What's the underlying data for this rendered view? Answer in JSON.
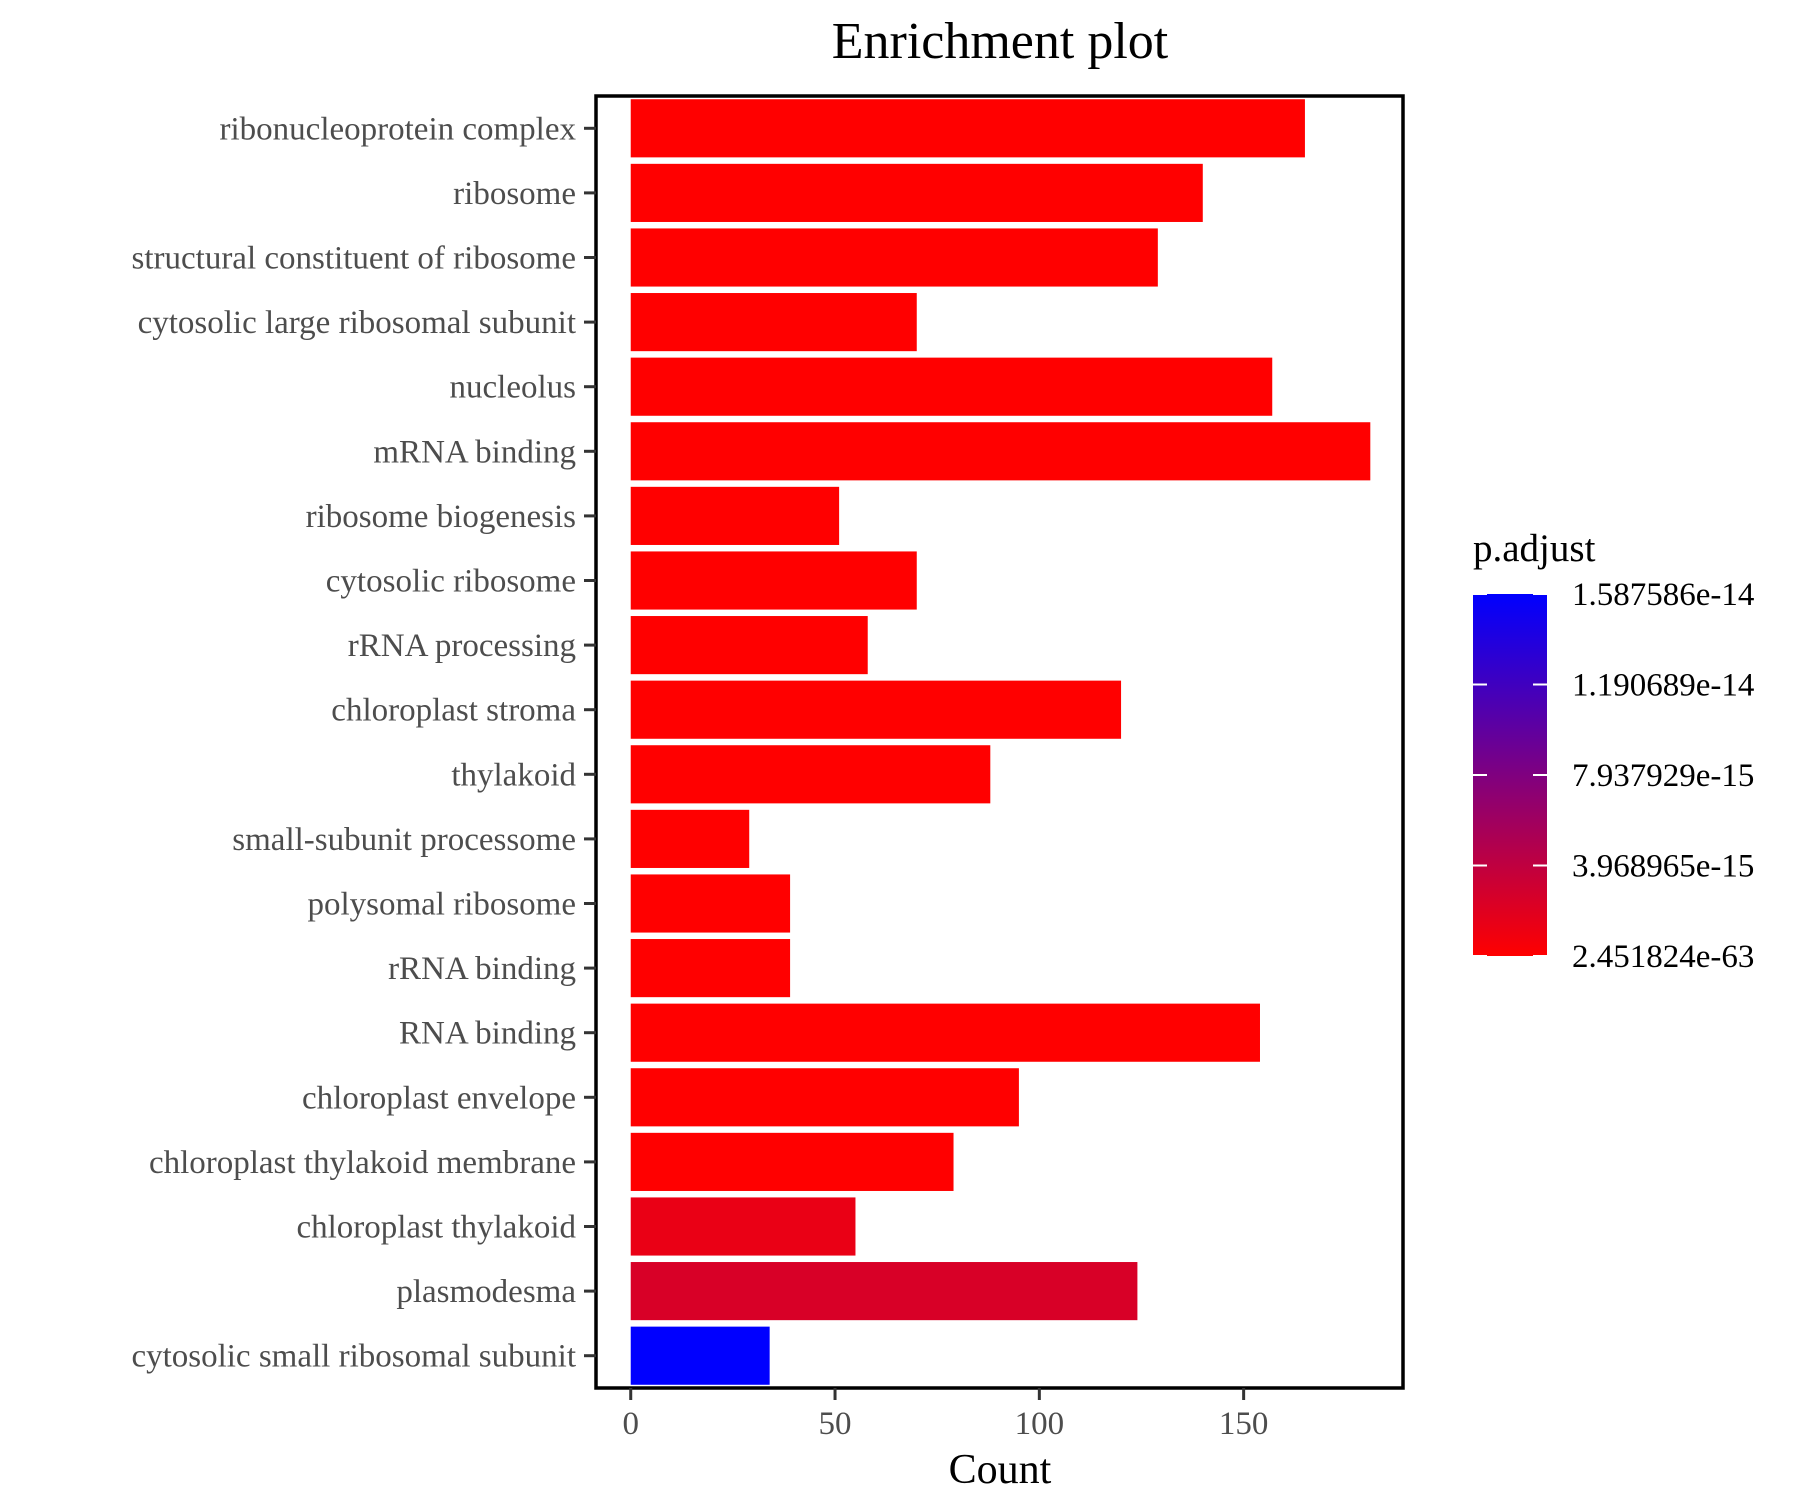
{
  "chart_data": {
    "type": "bar",
    "orientation": "horizontal",
    "title": "Enrichment plot",
    "xlabel": "Count",
    "ylabel": "",
    "xlim": [
      -8.5,
      189
    ],
    "x_ticks": [
      0,
      50,
      100,
      150
    ],
    "grid": false,
    "categories": [
      "ribonucleoprotein complex",
      "ribosome",
      "structural constituent of ribosome",
      "cytosolic large ribosomal subunit",
      "nucleolus",
      "mRNA binding",
      "ribosome biogenesis",
      "cytosolic ribosome",
      "rRNA processing",
      "chloroplast stroma",
      "thylakoid",
      "small-subunit processome",
      "polysomal ribosome",
      "rRNA binding",
      "RNA binding",
      "chloroplast envelope",
      "chloroplast thylakoid membrane",
      "chloroplast thylakoid",
      "plasmodesma",
      "cytosolic small ribosomal subunit"
    ],
    "values": [
      165,
      140,
      129,
      70,
      157,
      181,
      51,
      70,
      58,
      120,
      88,
      29,
      39,
      39,
      154,
      95,
      79,
      55,
      124,
      34
    ],
    "p_adjust": [
      0,
      0,
      0,
      0,
      0,
      0,
      0,
      0,
      0,
      0,
      0,
      0,
      0,
      0,
      0,
      0,
      0,
      1.3e-15,
      2.4e-15,
      1.587586e-14
    ],
    "color_legend": {
      "title": "p.adjust",
      "labels": [
        "1.587586e-14",
        "1.190689e-14",
        "7.937929e-15",
        "3.968965e-15",
        "2.451824e-63"
      ],
      "range": [
        2.451824e-63,
        1.587586e-14
      ],
      "low_color": "#ff0000",
      "high_color": "#0000ff"
    },
    "legend_position": "right"
  }
}
